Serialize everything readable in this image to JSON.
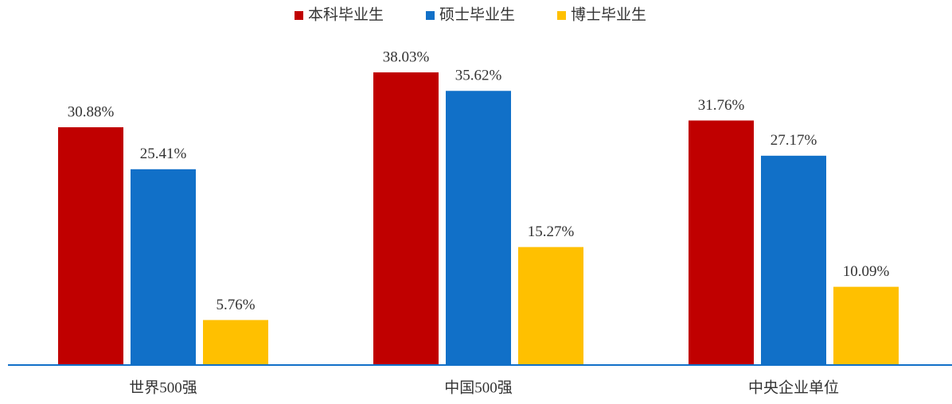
{
  "chart_data": {
    "type": "bar",
    "categories": [
      "世界500强",
      "中国500强",
      "中央企业单位"
    ],
    "series": [
      {
        "name": "本科毕业生",
        "color": "#c00000",
        "values": [
          30.88,
          38.03,
          31.76
        ],
        "value_labels": [
          "30.88%",
          "38.03%",
          "31.76%"
        ]
      },
      {
        "name": "硕士毕业生",
        "color": "#1170c8",
        "values": [
          25.41,
          35.62,
          27.17
        ],
        "value_labels": [
          "25.41%",
          "35.62%",
          "27.17%"
        ]
      },
      {
        "name": "博士毕业生",
        "color": "#ffc000",
        "values": [
          5.76,
          15.27,
          10.09
        ],
        "value_labels": [
          "5.76%",
          "15.27%",
          "10.09%"
        ]
      }
    ],
    "legend": "top"
  }
}
